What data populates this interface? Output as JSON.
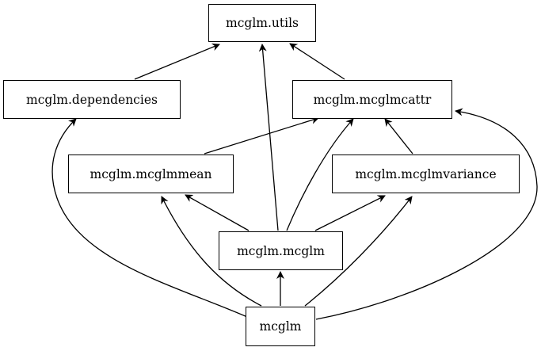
{
  "diagram": {
    "nodes": {
      "utils": "mcglm.utils",
      "dependencies": "mcglm.dependencies",
      "mcglmcattr": "mcglm.mcglmcattr",
      "mcglmmean": "mcglm.mcglmmean",
      "mcglmvariance": "mcglm.mcglmvariance",
      "mcglm_mcglm": "mcglm.mcglm",
      "mcglm": "mcglm"
    },
    "edges": [
      {
        "from": "mcglm.dependencies",
        "to": "mcglm.utils"
      },
      {
        "from": "mcglm.mcglmcattr",
        "to": "mcglm.utils"
      },
      {
        "from": "mcglm.mcglm",
        "to": "mcglm.utils"
      },
      {
        "from": "mcglm.mcglmmean",
        "to": "mcglm.mcglmcattr"
      },
      {
        "from": "mcglm.mcglm",
        "to": "mcglm.mcglmcattr"
      },
      {
        "from": "mcglm.mcglmvariance",
        "to": "mcglm.mcglmcattr"
      },
      {
        "from": "mcglm",
        "to": "mcglm.mcglmcattr"
      },
      {
        "from": "mcglm.mcglm",
        "to": "mcglm.mcglmmean"
      },
      {
        "from": "mcglm.mcglm",
        "to": "mcglm.mcglmvariance"
      },
      {
        "from": "mcglm",
        "to": "mcglm.dependencies"
      },
      {
        "from": "mcglm",
        "to": "mcglm.mcglmmean"
      },
      {
        "from": "mcglm",
        "to": "mcglm.mcglm"
      },
      {
        "from": "mcglm",
        "to": "mcglm.mcglmvariance"
      }
    ]
  }
}
